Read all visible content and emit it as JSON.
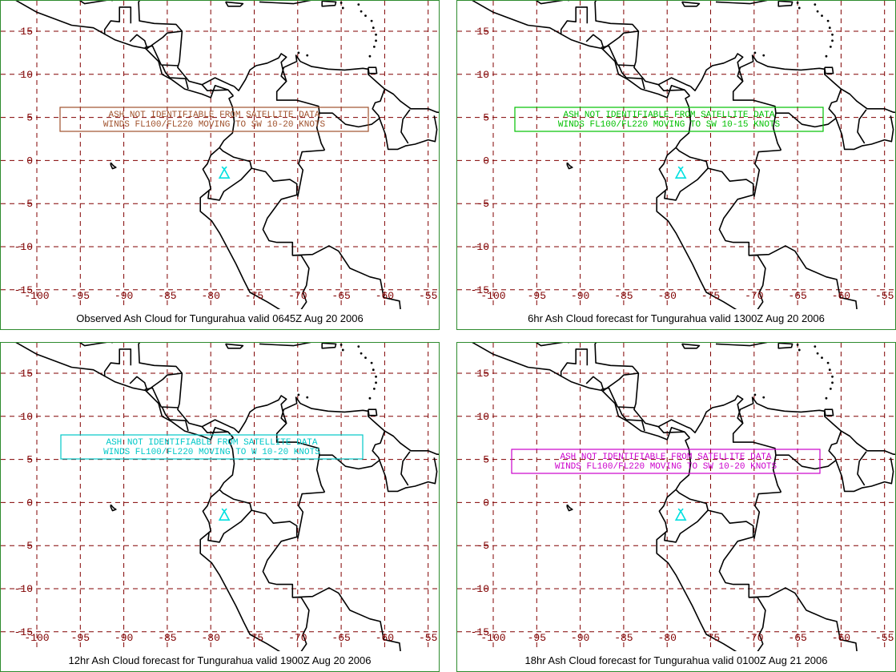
{
  "grid": {
    "lon_ticks": [
      "-100",
      "-95",
      "-90",
      "-85",
      "-80",
      "-75",
      "-70",
      "-65",
      "-60",
      "-55"
    ],
    "lat_ticks": [
      "15",
      "10",
      "5",
      "0",
      "-5",
      "-10",
      "-15"
    ],
    "line_color": "#800000"
  },
  "coast_color": "#000000",
  "volcano_color": "#00e0e0",
  "panels": [
    {
      "caption": "Observed Ash Cloud for Tungurahua valid 0645Z Aug 20 2006",
      "advisory_color": "#a0522d",
      "advisory": [
        "ASH NOT IDENTIFIABLE FROM SATELLITE DATA",
        "WINDS FL100/FL220 MOVING TO SW 10-20 KNOTS"
      ]
    },
    {
      "caption": "6hr Ash Cloud forecast for Tungurahua valid 1300Z Aug 20 2006",
      "advisory_color": "#00c000",
      "advisory": [
        "ASH NOT IDENTIFIABLE FROM SATELLITE DATA",
        "WINDS FL100/FL220 MOVING TO SW 10-15 KNOTS"
      ]
    },
    {
      "caption": "12hr Ash Cloud forecast for Tungurahua valid 1900Z Aug 20 2006",
      "advisory_color": "#00c8c8",
      "advisory": [
        "ASH NOT IDENTIFIABLE FROM SATELLITE DATA",
        "WINDS FL100/FL220 MOVING TO W 10-20 KNOTS"
      ]
    },
    {
      "caption": "18hr Ash Cloud forecast for Tungurahua valid 0100Z Aug 21 2006",
      "advisory_color": "#cc00cc",
      "advisory": [
        "ASH NOT IDENTIFIABLE FROM SATELLITE DATA",
        "WINDS FL100/FL220 MOVING TO SW 10-20 KNOTS"
      ]
    }
  ]
}
